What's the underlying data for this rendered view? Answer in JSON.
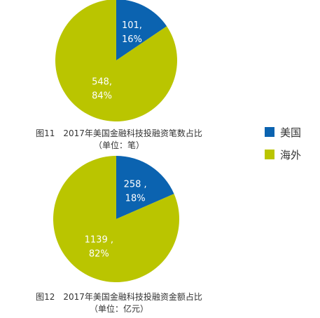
{
  "colors": {
    "us": "#0B63B0",
    "overseas": "#BAC500",
    "label_text": "#ffffff"
  },
  "legend": [
    {
      "name": "美国",
      "color": "#0B63B0"
    },
    {
      "name": "海外",
      "color": "#BAC500"
    }
  ],
  "captions": {
    "fig11_title": "图11　2017年美国金融科技投融资笔数占比",
    "fig11_sub": "（单位：笔）",
    "fig12_title": "图12　2017年美国金融科技投融资金额占比",
    "fig12_sub": "（单位：亿元）"
  },
  "chart_data": [
    {
      "type": "pie",
      "title": "图11　2017年美国金融科技投融资笔数占比",
      "subtitle": "（单位：笔）",
      "slices": [
        {
          "label": "美国",
          "value": 101,
          "percent": 16,
          "value_text": "101,",
          "percent_text": "16%",
          "color": "#0B63B0"
        },
        {
          "label": "海外",
          "value": 548,
          "percent": 84,
          "value_text": "548,",
          "percent_text": "84%",
          "color": "#BAC500"
        }
      ]
    },
    {
      "type": "pie",
      "title": "图12　2017年美国金融科技投融资金额占比",
      "subtitle": "（单位：亿元）",
      "slices": [
        {
          "label": "美国",
          "value": 258,
          "percent": 18,
          "value_text": "258 ,",
          "percent_text": "18%",
          "color": "#0B63B0"
        },
        {
          "label": "海外",
          "value": 1139,
          "percent": 82,
          "value_text": "1139 ,",
          "percent_text": "82%",
          "color": "#BAC500"
        }
      ]
    }
  ]
}
